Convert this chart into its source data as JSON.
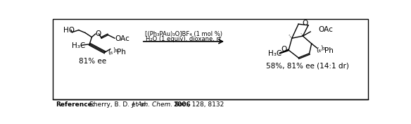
{
  "reagent_line1": "[(Ph₃PAu)₃O]BF₄ (1 mol %)",
  "reagent_line2": "H₂O (1 equiv), dioxane, rt",
  "yield_ee": "58%, 81% ee (14:1 dr)",
  "ee_substrate": "81% ee",
  "reference_label": "Reference:",
  "bg_color": "#ffffff",
  "border_color": "#000000",
  "fig_width": 5.84,
  "fig_height": 1.76
}
